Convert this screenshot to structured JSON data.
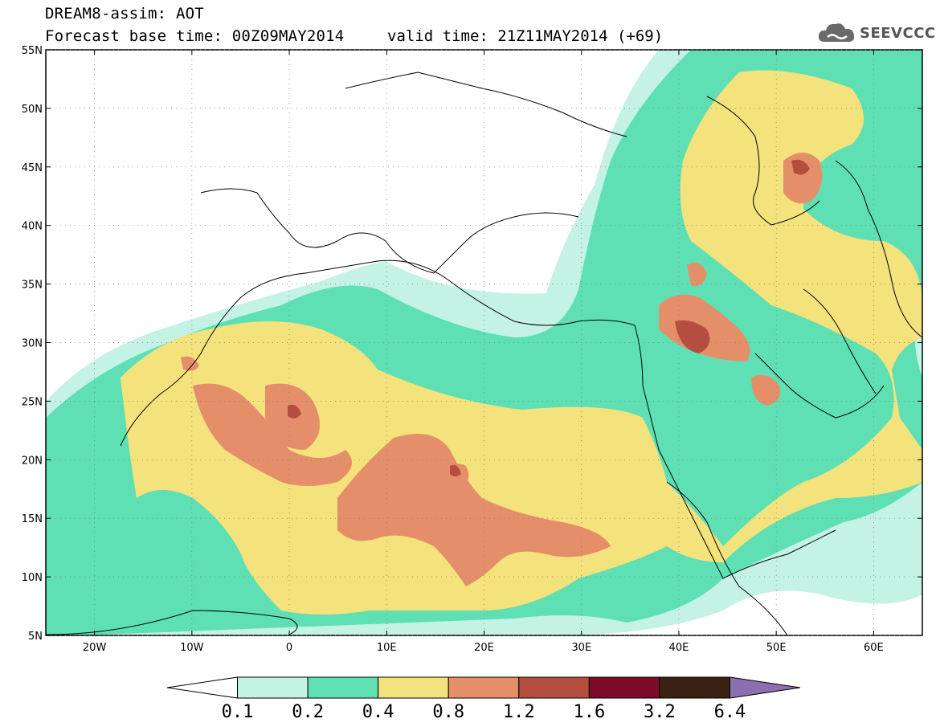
{
  "title": {
    "line1": "DREAM8-assim: AOT",
    "line2": "Forecast base time: 00Z09MAY2014",
    "valid": "valid time: 21Z11MAY2014 (+69)"
  },
  "logo": {
    "text": "SEEVCCC",
    "icon": "cloud-icon"
  },
  "map": {
    "lon_range": [
      -25,
      65
    ],
    "lat_range": [
      5,
      55
    ],
    "lat_ticks": [
      "5N",
      "10N",
      "15N",
      "20N",
      "25N",
      "30N",
      "35N",
      "40N",
      "45N",
      "50N",
      "55N"
    ],
    "lon_ticks": [
      "20W",
      "10W",
      "0",
      "10E",
      "20E",
      "30E",
      "40E",
      "50E",
      "60E"
    ]
  },
  "colorbar": {
    "colors": [
      "#ffffff",
      "#c4f2e4",
      "#5ee0b4",
      "#f4e27c",
      "#e58f6a",
      "#b54e3e",
      "#7b0b26",
      "#3a2113",
      "#8b6fae"
    ],
    "labels": [
      "0.1",
      "0.2",
      "0.4",
      "0.8",
      "1.2",
      "1.6",
      "3.2",
      "6.4"
    ]
  },
  "colors": {
    "c1": "#c4f2e4",
    "c2": "#5ee0b4",
    "c3": "#f4e27c",
    "c4": "#e58f6a",
    "c5": "#b54e3e"
  }
}
